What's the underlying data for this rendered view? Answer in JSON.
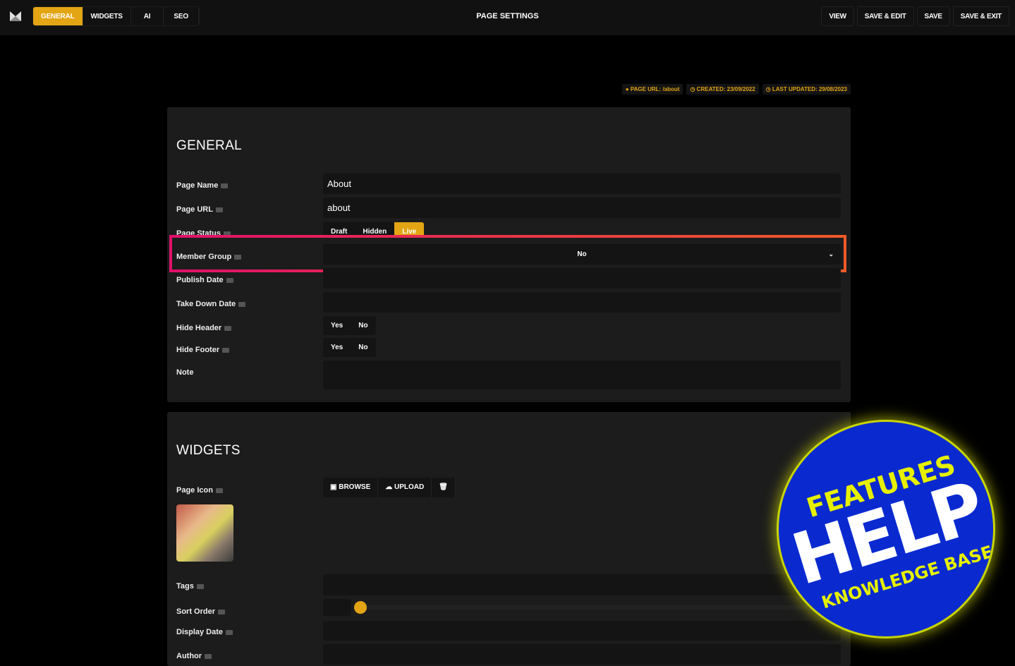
{
  "topbar": {
    "tabs": [
      "GENERAL",
      "WIDGETS",
      "AI",
      "SEO"
    ],
    "active_tab": "GENERAL",
    "title": "PAGE SETTINGS",
    "actions": [
      "VIEW",
      "SAVE & EDIT",
      "SAVE",
      "SAVE & EXIT"
    ]
  },
  "meta": {
    "page_url": "PAGE URL: /about",
    "created": "CREATED: 23/09/2022",
    "updated": "LAST UPDATED: 29/08/2023"
  },
  "general": {
    "title": "GENERAL",
    "page_name": {
      "label": "Page Name",
      "value": "About"
    },
    "page_url": {
      "label": "Page URL",
      "value": "about"
    },
    "page_status": {
      "label": "Page Status",
      "options": [
        "Draft",
        "Hidden",
        "Live"
      ],
      "selected": "Live"
    },
    "member_group": {
      "label": "Member Group",
      "value": "No"
    },
    "publish_date": {
      "label": "Publish Date",
      "value": ""
    },
    "take_down_date": {
      "label": "Take Down Date",
      "value": ""
    },
    "hide_header": {
      "label": "Hide Header",
      "options": [
        "Yes",
        "No"
      ]
    },
    "hide_footer": {
      "label": "Hide Footer",
      "options": [
        "Yes",
        "No"
      ]
    },
    "note": {
      "label": "Note",
      "value": ""
    }
  },
  "widgets": {
    "title": "WIDGETS",
    "page_icon": {
      "label": "Page Icon",
      "browse": "BROWSE",
      "upload": "UPLOAD"
    },
    "tags": {
      "label": "Tags"
    },
    "sort_order": {
      "label": "Sort Order",
      "value": 0
    },
    "display_date": {
      "label": "Display Date"
    },
    "author": {
      "label": "Author"
    }
  },
  "badge": {
    "line1": "FEATURES",
    "line2": "HELP",
    "line3": "KNOWLEDGE BASE"
  },
  "colors": {
    "accent": "#e3a514",
    "highlight_start": "#e0106a",
    "highlight_end": "#f05a28",
    "badge_blue": "#0a2ad0",
    "badge_yellow": "#e6f000"
  }
}
